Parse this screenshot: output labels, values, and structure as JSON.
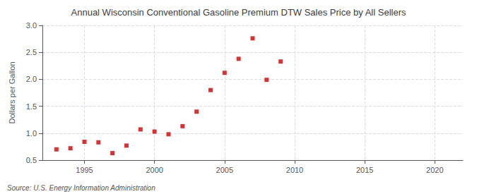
{
  "chart_data": {
    "type": "scatter",
    "title": "Annual Wisconsin Conventional Gasoline Premium DTW Sales Price by All Sellers",
    "ylabel": "Dollars per Gallon",
    "annotations": [
      "Source: U.S. Energy Information Administration"
    ],
    "x": [
      1993,
      1994,
      1995,
      1996,
      1997,
      1998,
      1999,
      2000,
      2001,
      2002,
      2003,
      2004,
      2005,
      2006,
      2007,
      2008,
      2009,
      2010
    ],
    "values": [
      0.7,
      0.72,
      0.84,
      0.83,
      0.63,
      0.77,
      1.07,
      1.03,
      0.98,
      1.13,
      1.4,
      1.8,
      2.12,
      2.38,
      2.76,
      1.99,
      2.33,
      null
    ],
    "color": "#cc0000",
    "marker": "square",
    "xlim": [
      1992,
      2022
    ],
    "xticks": [
      1995,
      2000,
      2005,
      2010,
      2015,
      2020
    ],
    "ylim": [
      0.5,
      3.0
    ],
    "yticks": [
      0.5,
      {
        "value": 1.0,
        "label": "1.0"
      },
      1.5,
      {
        "value": 2.0,
        "label": "2.0"
      },
      2.5,
      {
        "value": 3.0,
        "label": "3.0"
      }
    ],
    "grid": true
  }
}
